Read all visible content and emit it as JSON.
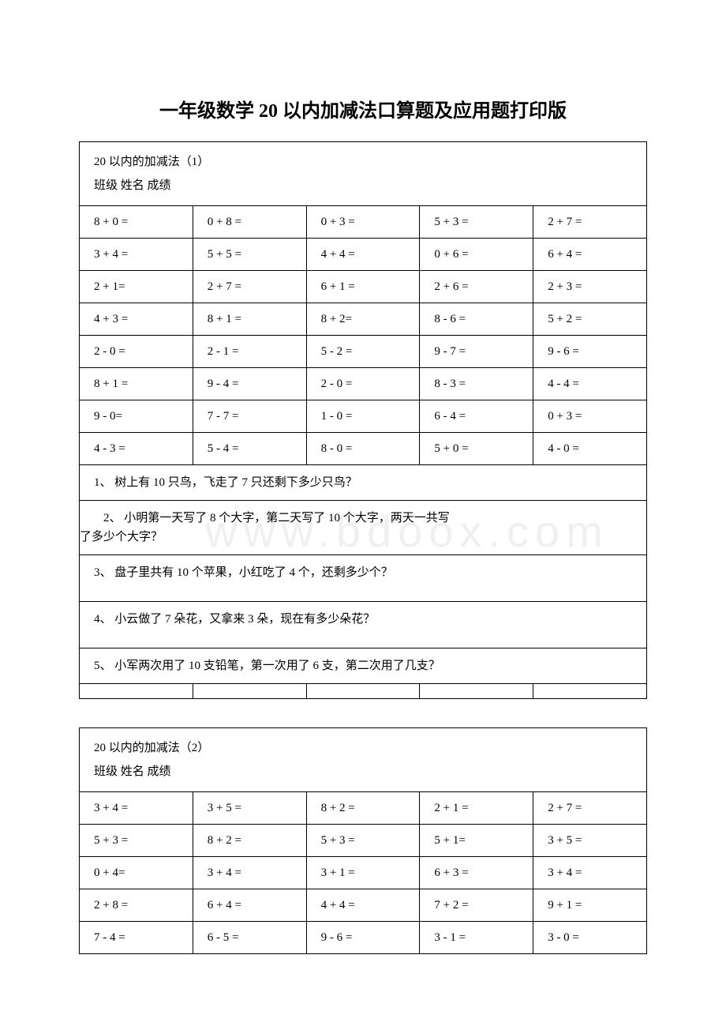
{
  "title": "一年级数学 20 以内加减法口算题及应用题打印版",
  "table1": {
    "heading_line1": "20 以内的加减法（1）",
    "heading_line2": "班级  姓名  成绩",
    "rows": [
      [
        "8 + 0 =",
        "0 + 8 =",
        "0 + 3 =",
        "5 + 3 =",
        "2 + 7 ="
      ],
      [
        "3 + 4 =",
        "5 + 5 =",
        "4 + 4 =",
        "0 + 6 =",
        "6 + 4 ="
      ],
      [
        "2 + 1=",
        "2 + 7 =",
        "6 + 1 =",
        "2 + 6 =",
        "2 + 3 ="
      ],
      [
        "4 + 3 =",
        "8 + 1 =",
        "8 + 2=",
        "8 - 6 =",
        "5 + 2 ="
      ],
      [
        "2 - 0 =",
        "2 - 1 =",
        "5 - 2 =",
        "9 - 7 =",
        "9 - 6 ="
      ],
      [
        "8 + 1 =",
        "9 - 4 =",
        "2 - 0 =",
        "8 - 3 =",
        "4 - 4 ="
      ],
      [
        "9 - 0=",
        "7 - 7 =",
        "1 - 0 =",
        "6 - 4 =",
        "0 + 3 ="
      ],
      [
        "4 - 3 =",
        "5 - 4 =",
        "8 - 0 =",
        "5 + 0 =",
        "4 - 0 ="
      ]
    ],
    "q1": "1、 树上有 10 只鸟，飞走了 7 只还剩下多少只鸟？",
    "q2_l1": "　　2、 小明第一天写了 8 个大字，第二天写了 10 个大字，两天一共写",
    "q2_l2": "了多少个大字？",
    "q3": "3、 盘子里共有 10 个苹果，小红吃了 4 个，还剩多少个？",
    "q4": "4、 小云做了 7 朵花，又拿来 3 朵，现在有多少朵花？",
    "q5": "5、 小军两次用了 10 支铅笔，第一次用了 6 支，第二次用了几支？"
  },
  "table2": {
    "heading_line1": "20 以内的加减法（2）",
    "heading_line2": "班级  姓名  成绩",
    "rows": [
      [
        "3 + 4 =",
        "3 + 5 =",
        "8 + 2 =",
        "2 + 1 =",
        "2 + 7 ="
      ],
      [
        "5 + 3 =",
        "8 + 2 =",
        "5 + 3 =",
        "5 + 1=",
        "3 + 5 ="
      ],
      [
        "0 + 4=",
        "3 + 4 =",
        "3 + 1 =",
        "6 + 3 =",
        "3 + 4 ="
      ],
      [
        "2 + 8 =",
        "6 + 4 =",
        "4 + 4 =",
        "7 + 2 =",
        "9 + 1 ="
      ],
      [
        "7 - 4 =",
        "6 - 5 =",
        "9 - 6 =",
        "3 - 1 =",
        "3 - 0 ="
      ]
    ]
  },
  "watermark_text": "www.bdoox.com"
}
